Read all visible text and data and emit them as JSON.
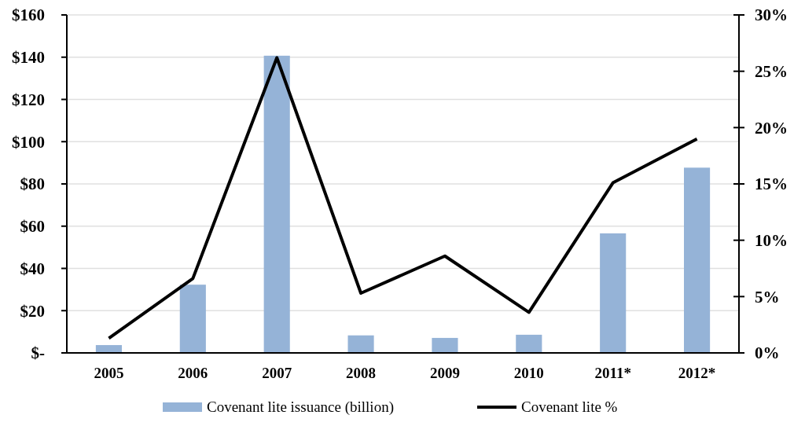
{
  "chart_data": {
    "type": "bar",
    "categories": [
      "2005",
      "2006",
      "2007",
      "2008",
      "2009",
      "2010",
      "2011*",
      "2012*"
    ],
    "series": [
      {
        "name": "Covenant lite issuance (billion)",
        "color": "#95b3d7",
        "values": [
          3.7,
          32.3,
          140.7,
          8.3,
          7.1,
          8.6,
          56.6,
          87.7
        ]
      },
      {
        "name": "Covenant lite %",
        "type": "line",
        "axis": "y2",
        "color": "#000000",
        "values": [
          1.3,
          6.6,
          26.2,
          5.3,
          8.6,
          3.6,
          15.1,
          19.0
        ]
      }
    ],
    "ylim": [
      0,
      160
    ],
    "yticks": [
      {
        "value": 0,
        "label": "$-"
      },
      {
        "value": 20,
        "label": "$20"
      },
      {
        "value": 40,
        "label": "$40"
      },
      {
        "value": 60,
        "label": "$60"
      },
      {
        "value": 80,
        "label": "$80"
      },
      {
        "value": 100,
        "label": "$100"
      },
      {
        "value": 120,
        "label": "$120"
      },
      {
        "value": 140,
        "label": "$140"
      },
      {
        "value": 160,
        "label": "$160"
      }
    ],
    "y2lim": [
      0,
      30
    ],
    "y2ticks": [
      {
        "value": 0,
        "label": "0%"
      },
      {
        "value": 5,
        "label": "5%"
      },
      {
        "value": 10,
        "label": "10%"
      },
      {
        "value": 15,
        "label": "15%"
      },
      {
        "value": 20,
        "label": "20%"
      },
      {
        "value": 25,
        "label": "25%"
      },
      {
        "value": 30,
        "label": "30%"
      }
    ],
    "grid": "y",
    "legend": "bottom",
    "marker": "none",
    "line_style": "solid"
  }
}
